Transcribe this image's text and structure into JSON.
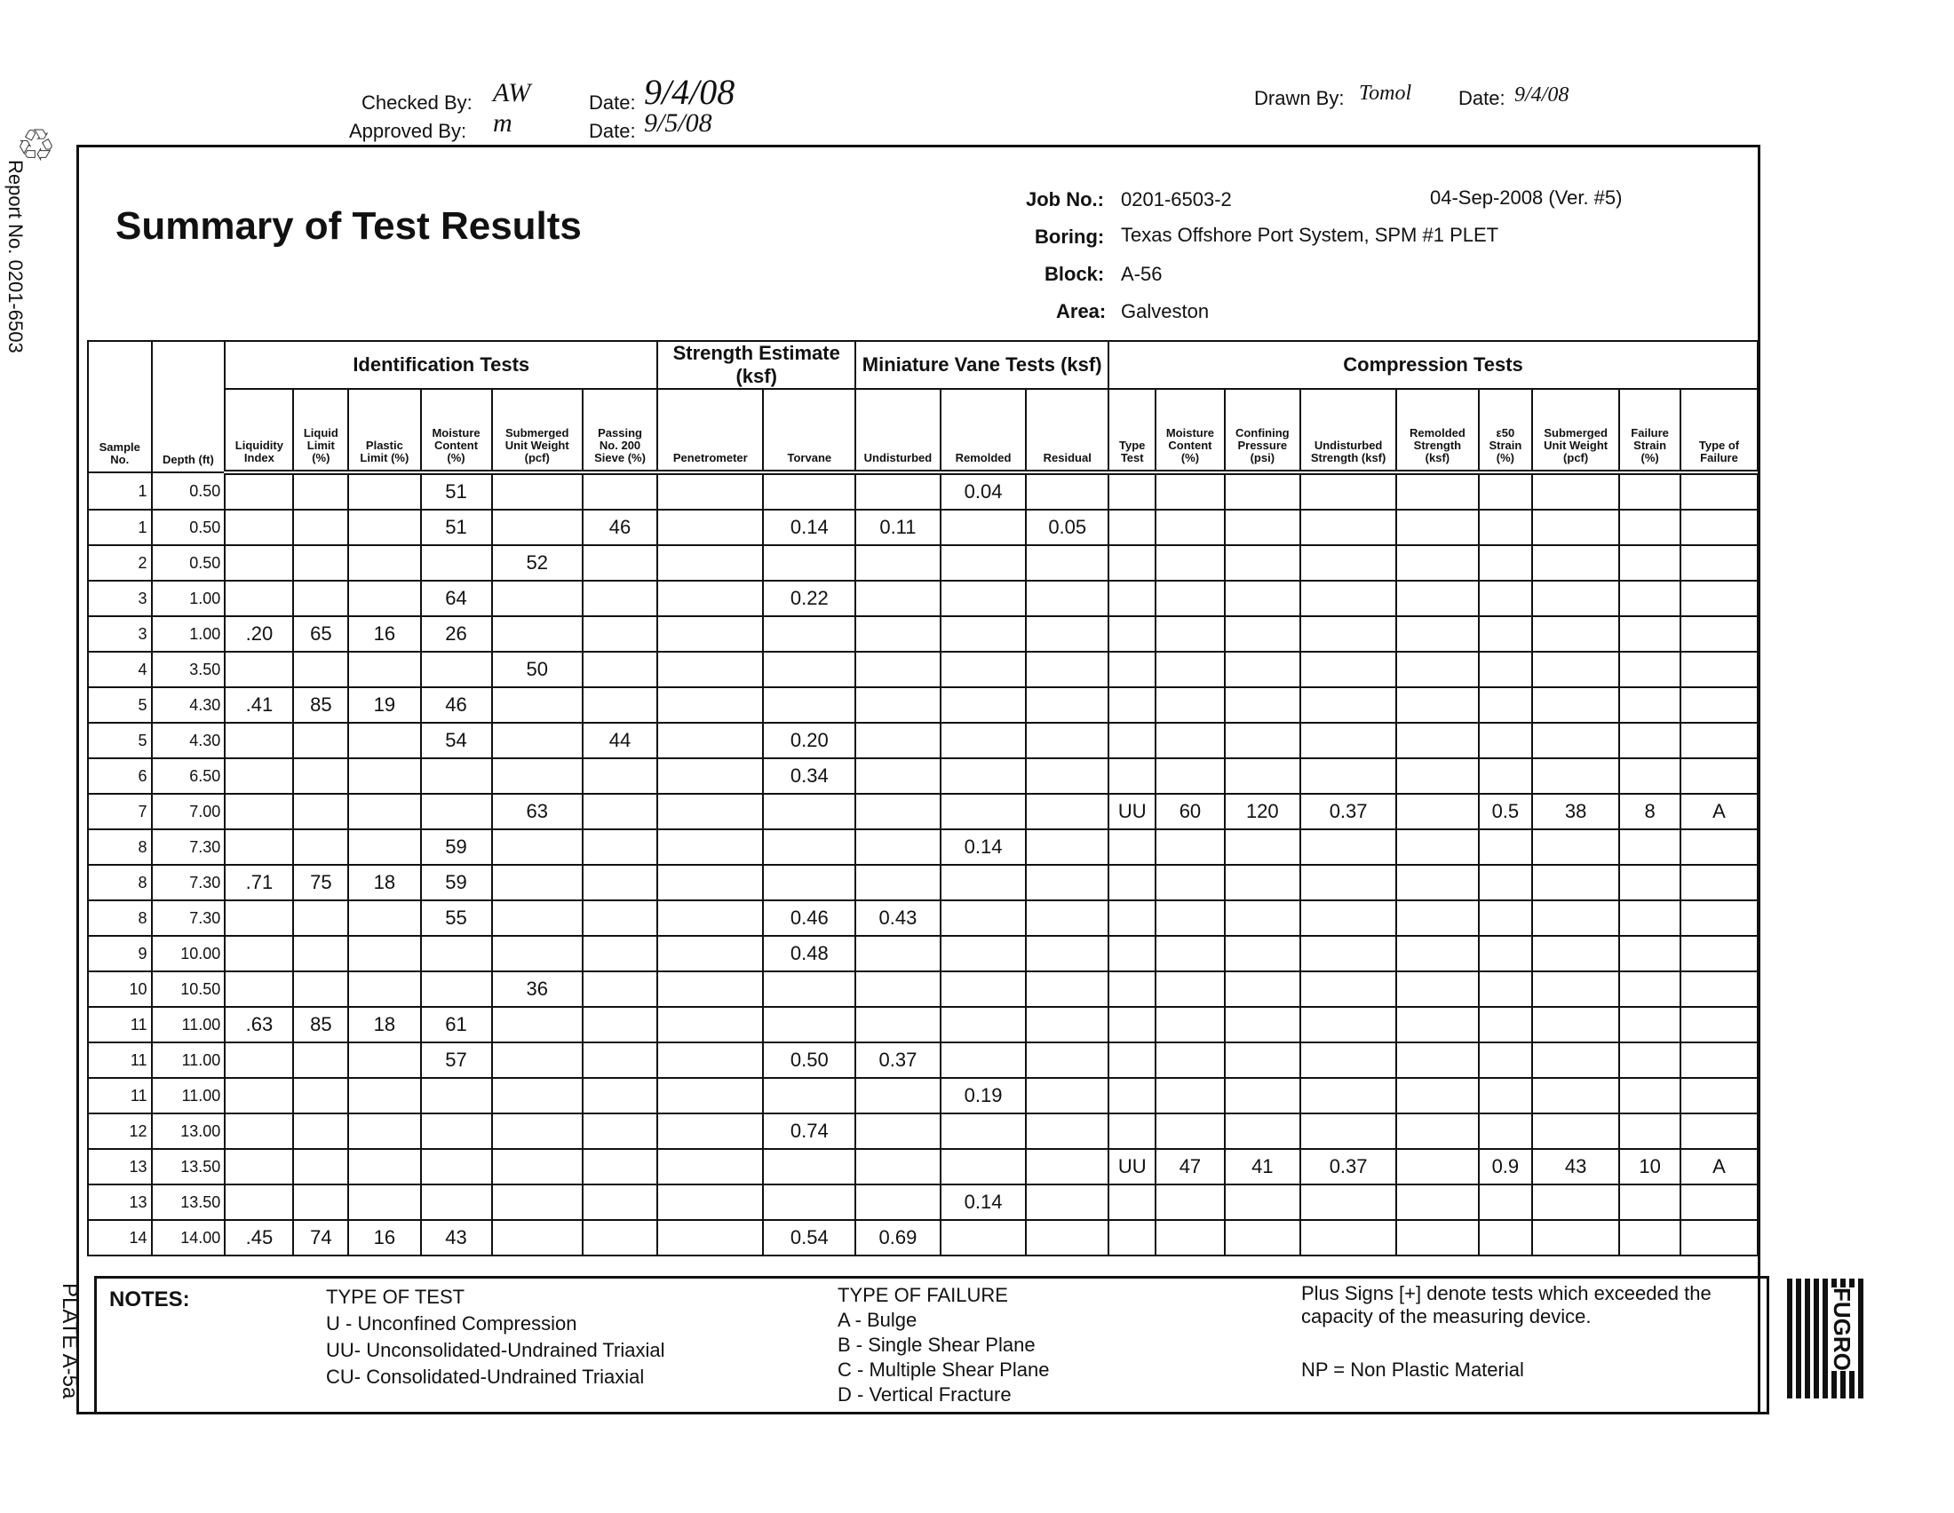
{
  "signoff": {
    "checked_label": "Checked By:",
    "checked_value": "AW",
    "approved_label": "Approved By:",
    "approved_value": "m",
    "date_label": "Date:",
    "checked_date": "9/4/08",
    "approved_date": "9/5/08",
    "drawn_label": "Drawn By:",
    "drawn_value": "Tomol",
    "drawn_date": "9/4/08"
  },
  "side": {
    "report": "Report No. 0201-6503",
    "plate": "PLATE A-5a"
  },
  "header": {
    "title": "Summary of Test Results",
    "job_label": "Job No.:",
    "job": "0201-6503-2",
    "date_ver": "04-Sep-2008  (Ver. #5)",
    "boring_label": "Boring:",
    "boring": "Texas Offshore Port System, SPM #1 PLET",
    "block_label": "Block:",
    "block": "A-56",
    "area_label": "Area:",
    "area": "Galveston"
  },
  "groups": [
    "Identification Tests",
    "Strength Estimate (ksf)",
    "Miniature Vane Tests (ksf)",
    "Compression Tests"
  ],
  "columns": [
    "Sample No.",
    "Depth (ft)",
    "Liquidity Index",
    "Liquid Limit (%)",
    "Plastic Limit (%)",
    "Moisture Content (%)",
    "Submerged Unit Weight (pcf)",
    "Passing No. 200 Sieve (%)",
    "Penetrometer",
    "Torvane",
    "Undisturbed",
    "Remolded",
    "Residual",
    "Type Test",
    "Moisture Content (%)",
    "Confining Pressure (psi)",
    "Undisturbed Strength (ksf)",
    "Remolded Strength (ksf)",
    "ε50 Strain (%)",
    "Submerged Unit Weight (pcf)",
    "Failure Strain (%)",
    "Type of Failure"
  ],
  "rows": [
    [
      "1",
      "0.50",
      "",
      "",
      "",
      "51",
      "",
      "",
      "",
      "",
      "",
      "0.04",
      "",
      "",
      "",
      "",
      "",
      "",
      "",
      "",
      "",
      ""
    ],
    [
      "1",
      "0.50",
      "",
      "",
      "",
      "51",
      "",
      "46",
      "",
      "0.14",
      "0.11",
      "",
      "0.05",
      "",
      "",
      "",
      "",
      "",
      "",
      "",
      "",
      ""
    ],
    [
      "2",
      "0.50",
      "",
      "",
      "",
      "",
      "52",
      "",
      "",
      "",
      "",
      "",
      "",
      "",
      "",
      "",
      "",
      "",
      "",
      "",
      "",
      ""
    ],
    [
      "3",
      "1.00",
      "",
      "",
      "",
      "64",
      "",
      "",
      "",
      "0.22",
      "",
      "",
      "",
      "",
      "",
      "",
      "",
      "",
      "",
      "",
      "",
      ""
    ],
    [
      "3",
      "1.00",
      ".20",
      "65",
      "16",
      "26",
      "",
      "",
      "",
      "",
      "",
      "",
      "",
      "",
      "",
      "",
      "",
      "",
      "",
      "",
      "",
      ""
    ],
    [
      "4",
      "3.50",
      "",
      "",
      "",
      "",
      "50",
      "",
      "",
      "",
      "",
      "",
      "",
      "",
      "",
      "",
      "",
      "",
      "",
      "",
      "",
      ""
    ],
    [
      "5",
      "4.30",
      ".41",
      "85",
      "19",
      "46",
      "",
      "",
      "",
      "",
      "",
      "",
      "",
      "",
      "",
      "",
      "",
      "",
      "",
      "",
      "",
      ""
    ],
    [
      "5",
      "4.30",
      "",
      "",
      "",
      "54",
      "",
      "44",
      "",
      "0.20",
      "",
      "",
      "",
      "",
      "",
      "",
      "",
      "",
      "",
      "",
      "",
      ""
    ],
    [
      "6",
      "6.50",
      "",
      "",
      "",
      "",
      "",
      "",
      "",
      "0.34",
      "",
      "",
      "",
      "",
      "",
      "",
      "",
      "",
      "",
      "",
      "",
      ""
    ],
    [
      "7",
      "7.00",
      "",
      "",
      "",
      "",
      "63",
      "",
      "",
      "",
      "",
      "",
      "",
      "UU",
      "60",
      "120",
      "0.37",
      "",
      "0.5",
      "38",
      "8",
      "A"
    ],
    [
      "8",
      "7.30",
      "",
      "",
      "",
      "59",
      "",
      "",
      "",
      "",
      "",
      "0.14",
      "",
      "",
      "",
      "",
      "",
      "",
      "",
      "",
      "",
      ""
    ],
    [
      "8",
      "7.30",
      ".71",
      "75",
      "18",
      "59",
      "",
      "",
      "",
      "",
      "",
      "",
      "",
      "",
      "",
      "",
      "",
      "",
      "",
      "",
      "",
      ""
    ],
    [
      "8",
      "7.30",
      "",
      "",
      "",
      "55",
      "",
      "",
      "",
      "0.46",
      "0.43",
      "",
      "",
      "",
      "",
      "",
      "",
      "",
      "",
      "",
      "",
      ""
    ],
    [
      "9",
      "10.00",
      "",
      "",
      "",
      "",
      "",
      "",
      "",
      "0.48",
      "",
      "",
      "",
      "",
      "",
      "",
      "",
      "",
      "",
      "",
      "",
      ""
    ],
    [
      "10",
      "10.50",
      "",
      "",
      "",
      "",
      "36",
      "",
      "",
      "",
      "",
      "",
      "",
      "",
      "",
      "",
      "",
      "",
      "",
      "",
      "",
      ""
    ],
    [
      "11",
      "11.00",
      ".63",
      "85",
      "18",
      "61",
      "",
      "",
      "",
      "",
      "",
      "",
      "",
      "",
      "",
      "",
      "",
      "",
      "",
      "",
      "",
      ""
    ],
    [
      "11",
      "11.00",
      "",
      "",
      "",
      "57",
      "",
      "",
      "",
      "0.50",
      "0.37",
      "",
      "",
      "",
      "",
      "",
      "",
      "",
      "",
      "",
      "",
      ""
    ],
    [
      "11",
      "11.00",
      "",
      "",
      "",
      "",
      "",
      "",
      "",
      "",
      "",
      "0.19",
      "",
      "",
      "",
      "",
      "",
      "",
      "",
      "",
      "",
      ""
    ],
    [
      "12",
      "13.00",
      "",
      "",
      "",
      "",
      "",
      "",
      "",
      "0.74",
      "",
      "",
      "",
      "",
      "",
      "",
      "",
      "",
      "",
      "",
      "",
      ""
    ],
    [
      "13",
      "13.50",
      "",
      "",
      "",
      "",
      "",
      "",
      "",
      "",
      "",
      "",
      "",
      "UU",
      "47",
      "41",
      "0.37",
      "",
      "0.9",
      "43",
      "10",
      "A"
    ],
    [
      "13",
      "13.50",
      "",
      "",
      "",
      "",
      "",
      "",
      "",
      "",
      "",
      "0.14",
      "",
      "",
      "",
      "",
      "",
      "",
      "",
      "",
      "",
      ""
    ],
    [
      "14",
      "14.00",
      ".45",
      "74",
      "16",
      "43",
      "",
      "",
      "",
      "0.54",
      "0.69",
      "",
      "",
      "",
      "",
      "",
      "",
      "",
      "",
      "",
      "",
      ""
    ]
  ],
  "notes": {
    "label": "NOTES:",
    "test_title": "TYPE OF TEST",
    "tests": [
      "U  - Unconfined Compression",
      "UU- Unconsolidated-Undrained Triaxial",
      "CU- Consolidated-Undrained Triaxial"
    ],
    "failure_title": "TYPE OF FAILURE",
    "failures": [
      "A - Bulge",
      "B - Single Shear Plane",
      "C - Multiple Shear Plane",
      "D - Vertical Fracture"
    ],
    "plus": "Plus Signs [+] denote tests which exceeded the capacity of the measuring device.",
    "np": "NP = Non Plastic Material"
  },
  "logo": "FUGRO"
}
